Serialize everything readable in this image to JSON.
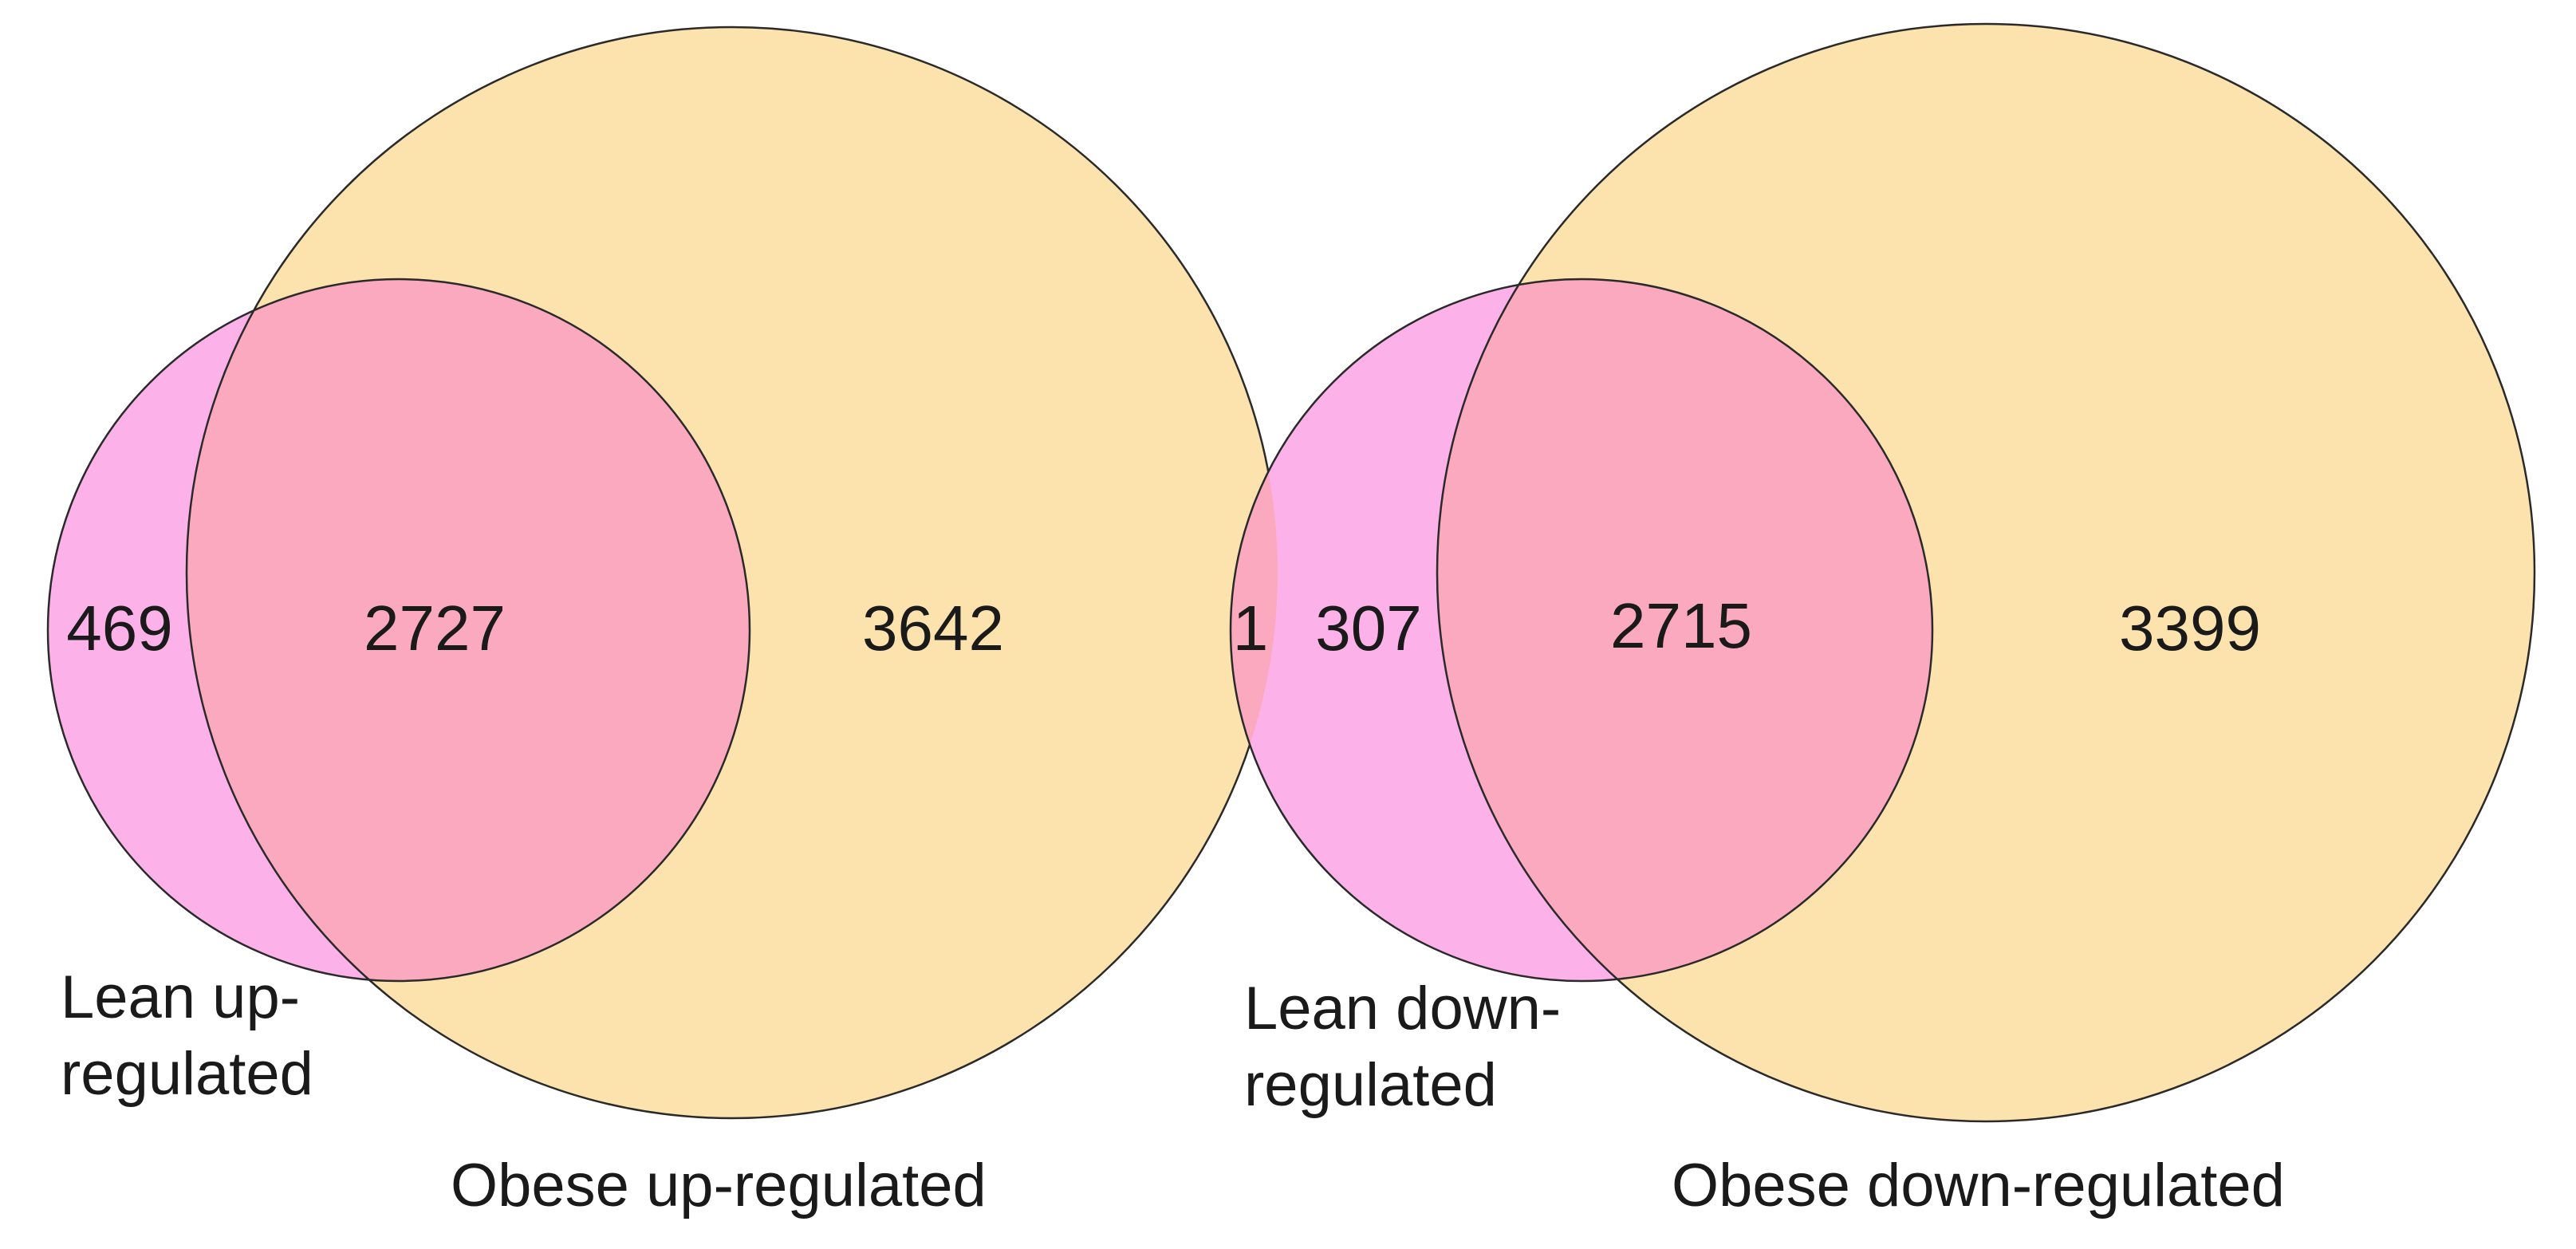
{
  "colors": {
    "lean": "#fcb2e8",
    "obese": "#fce2ad",
    "overlap": "#fba9be",
    "stroke": "#2a2a2a",
    "text": "#1a1a1a"
  },
  "up": {
    "counts": {
      "lean_only": "469",
      "both": "2727",
      "obese_only": "3642"
    },
    "lean_label": [
      "Lean up-",
      "regulated"
    ],
    "obese_label": "Obese up-regulated"
  },
  "down": {
    "counts": {
      "cross_overlap": "1",
      "lean_only": "307",
      "both": "2715",
      "obese_only": "3399"
    },
    "lean_label": [
      "Lean down-",
      "regulated"
    ],
    "obese_label": "Obese down-regulated"
  }
}
